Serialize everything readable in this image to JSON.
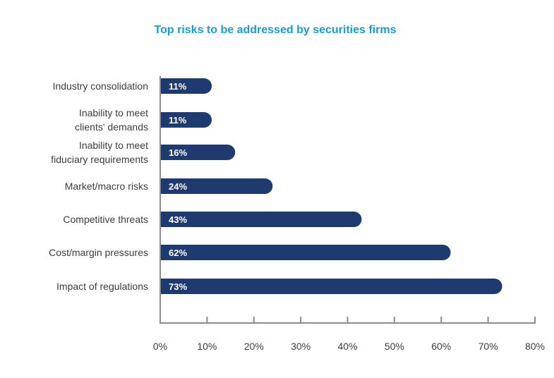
{
  "chart_data": {
    "type": "bar",
    "orientation": "horizontal",
    "title": "Top risks to be addressed by securities firms",
    "categories": [
      [
        "Industry consolidation"
      ],
      [
        "Inability to meet",
        "clients' demands"
      ],
      [
        "Inability to meet",
        "fiduciary requirements"
      ],
      [
        "Market/macro risks"
      ],
      [
        "Competitive threats"
      ],
      [
        "Cost/margin pressures"
      ],
      [
        "Impact of regulations"
      ]
    ],
    "values": [
      11,
      11,
      16,
      24,
      43,
      62,
      73
    ],
    "data_labels": [
      "11%",
      "11%",
      "16%",
      "24%",
      "43%",
      "62%",
      "73%"
    ],
    "xlim": [
      0,
      80
    ],
    "xticks": [
      0,
      10,
      20,
      30,
      40,
      50,
      60,
      70,
      80
    ],
    "xtick_labels": [
      "0%",
      "10%",
      "20%",
      "30%",
      "40%",
      "50%",
      "60%",
      "70%",
      "80%"
    ],
    "xlabel": "",
    "ylabel": "",
    "grid": false,
    "colors": {
      "bar": "#1f3a6e",
      "title": "#1a9ad6",
      "axis": "#8c8c8c",
      "text": "#3c3c3c"
    }
  }
}
